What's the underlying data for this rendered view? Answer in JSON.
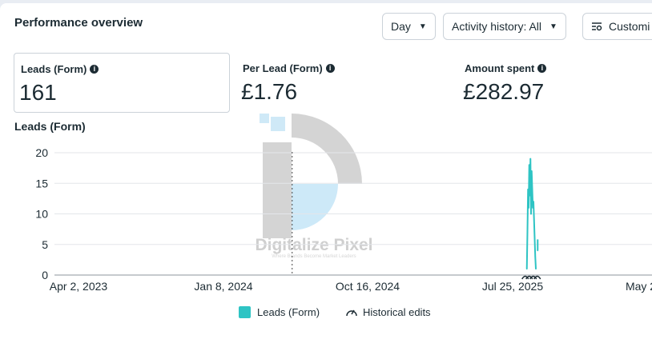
{
  "header": {
    "title": "Performance overview",
    "day_label": "Day",
    "activity_label": "Activity history: All",
    "customize_label": "Customi"
  },
  "metrics": [
    {
      "label": "Leads (Form)",
      "value": "161"
    },
    {
      "label": "Per Lead (Form)",
      "value": "£1.76"
    },
    {
      "label": "Amount spent",
      "value": "£282.97"
    }
  ],
  "watermark": {
    "text": "Digitalize Pixel",
    "tagline": "Where Brands Become Market Leaders"
  },
  "legend": {
    "series_label": "Leads (Form)",
    "edits_label": "Historical edits"
  },
  "colors": {
    "series": "#2ec4c4",
    "grid": "#e3e6ea",
    "axis": "#8d949e"
  },
  "chart_data": {
    "type": "line",
    "title": "Leads (Form)",
    "xlabel": "",
    "ylabel": "",
    "x_ticks": [
      "Apr 2, 2023",
      "Jan 8, 2024",
      "Oct 16, 2024",
      "Jul 25, 2025",
      "May 2"
    ],
    "y_ticks": [
      0,
      5,
      10,
      15,
      20
    ],
    "ylim": [
      0,
      20
    ],
    "xlim": [
      "2023-04-02",
      "2025-12-20"
    ],
    "reference_date": "2024-05-01",
    "grid": true,
    "legend_position": "bottom",
    "series": [
      {
        "name": "Leads (Form)",
        "x": [
          "2025-05-26",
          "2025-05-27",
          "2025-05-28",
          "2025-05-29",
          "2025-05-30",
          "2025-05-31",
          "2025-06-01",
          "2025-06-02",
          "2025-06-03",
          "2025-06-04",
          "2025-06-05",
          "2025-06-06",
          "2025-06-07",
          "2025-06-08",
          "2025-06-09",
          "2025-06-10",
          "2025-06-11",
          "2025-06-12",
          "2025-06-13"
        ],
        "values": [
          1,
          7,
          14,
          11,
          18,
          13,
          19,
          10,
          17,
          14,
          11,
          12,
          9,
          6,
          3,
          1,
          null,
          null,
          4
        ]
      }
    ]
  }
}
